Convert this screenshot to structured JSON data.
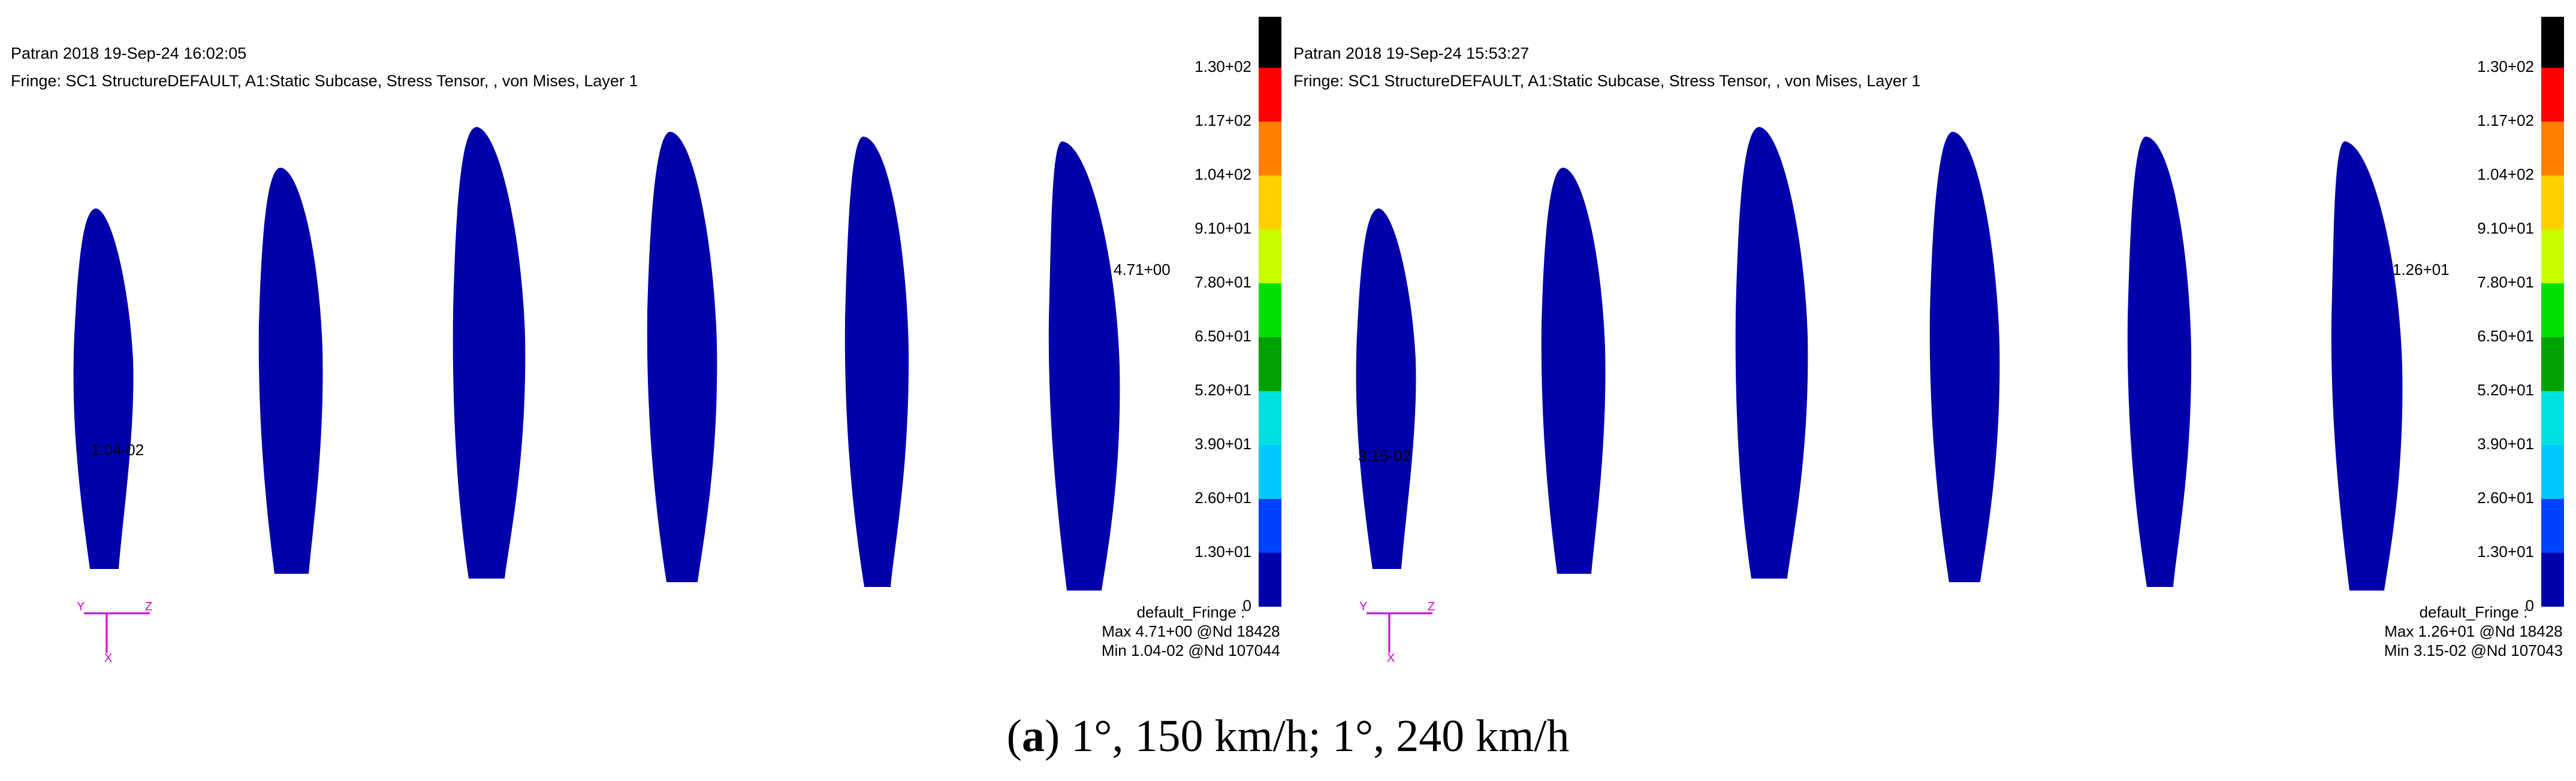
{
  "panels": [
    {
      "id": "left",
      "title": "Patran 2018 19-Sep-24 16:02:05",
      "fringe_line": "Fringe: SC1 StructureDEFAULT, A1:Static Subcase, Stress Tensor, , von Mises, Layer 1",
      "max_marker_label": "4.71+00",
      "min_marker_label": "1.04-02",
      "legend_footer": [
        "default_Fringe :",
        "Max 4.71+00 @Nd 18428",
        "Min 1.04-02 @Nd 107044"
      ]
    },
    {
      "id": "right",
      "title": "Patran 2018 19-Sep-24 15:53:27",
      "fringe_line": "Fringe: SC1 StructureDEFAULT, A1:Static Subcase, Stress Tensor, , von Mises, Layer 1",
      "max_marker_label": "1.26+01",
      "min_marker_label": "3.15-02",
      "legend_footer": [
        "default_Fringe :",
        "Max 1.26+01 @Nd 18428",
        "Min 3.15-02 @Nd 107043"
      ]
    }
  ],
  "colorbar": {
    "ticks": [
      "1.30+02",
      "1.17+02",
      "1.04+02",
      "9.10+01",
      "7.80+01",
      "6.50+01",
      "5.20+01",
      "3.90+01",
      "2.60+01",
      "1.30+01",
      "0"
    ],
    "colors": [
      "#000000",
      "#ff0000",
      "#ff8000",
      "#ffd000",
      "#c8ff00",
      "#00e000",
      "#00a000",
      "#00e0e0",
      "#00c8ff",
      "#0040ff",
      "#0000aa"
    ]
  },
  "axes": {
    "y": "Y",
    "z": "Z",
    "x": "X"
  },
  "caption": {
    "letter": "a",
    "text": ") 1°, 150 km/h; 1°, 240 km/h"
  },
  "blade_color": "#0000AA"
}
